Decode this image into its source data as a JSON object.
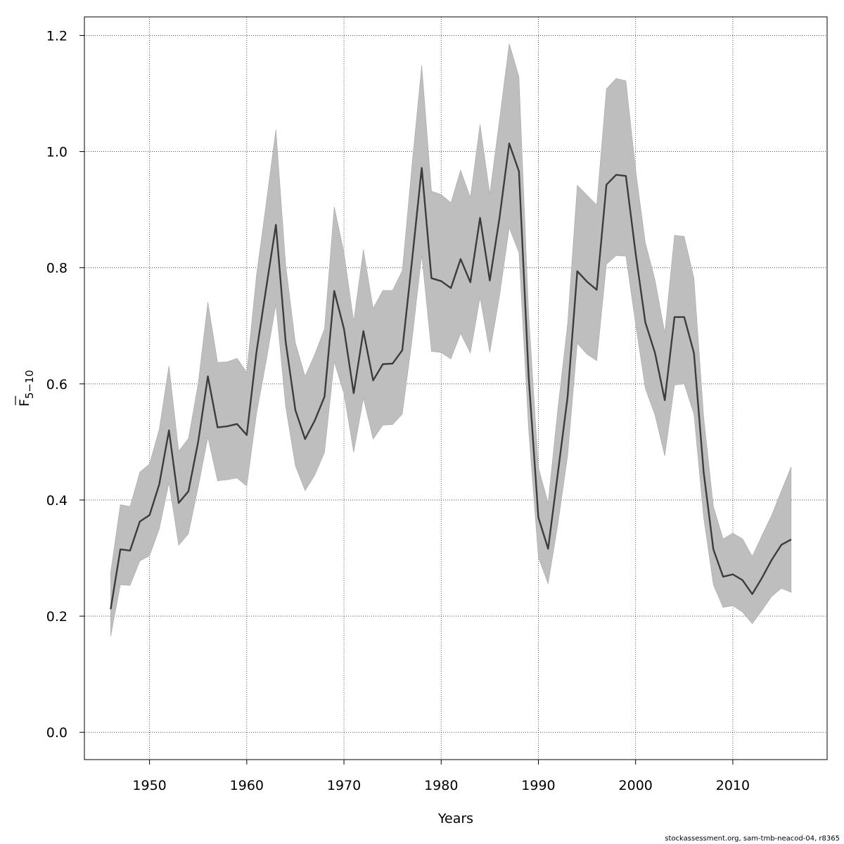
{
  "chart_data": {
    "type": "line",
    "xlabel": "Years",
    "ylabel": {
      "base": "F",
      "subscript": "5−10"
    },
    "xlim": [
      1943.3,
      2019.7
    ],
    "ylim": [
      -0.047,
      1.232
    ],
    "x_ticks": [
      1950,
      1960,
      1970,
      1980,
      1990,
      2000,
      2010
    ],
    "x_tick_labels": [
      "1950",
      "1960",
      "1970",
      "1980",
      "1990",
      "2000",
      "2010"
    ],
    "y_ticks": [
      0.0,
      0.2,
      0.4,
      0.6,
      0.8,
      1.0,
      1.2
    ],
    "y_tick_labels": [
      "0.0",
      "0.2",
      "0.4",
      "0.6",
      "0.8",
      "1.0",
      "1.2"
    ],
    "grid": true,
    "colors": {
      "line": "#3c3c3c",
      "band": "#bebebe",
      "band_edge": "#a8a8a8"
    },
    "series": [
      {
        "years": [
          1946,
          1947,
          1948,
          1949,
          1950,
          1951,
          1952,
          1953,
          1954,
          1955,
          1956,
          1957,
          1958,
          1959,
          1960,
          1961,
          1962,
          1963,
          1964,
          1965,
          1966,
          1967,
          1968,
          1969,
          1970,
          1971,
          1972,
          1973,
          1974,
          1975,
          1976,
          1977,
          1978,
          1979,
          1980,
          1981,
          1982,
          1983,
          1984,
          1985,
          1986,
          1987,
          1988,
          1989,
          1990,
          1991,
          1992,
          1993,
          1994,
          1995,
          1996,
          1997,
          1998,
          1999,
          2000,
          2001,
          2002,
          2003,
          2004,
          2005,
          2006,
          2007,
          2008,
          2009,
          2010,
          2011,
          2012,
          2013,
          2014,
          2015,
          2016
        ],
        "values": [
          0.212,
          0.315,
          0.313,
          0.363,
          0.374,
          0.427,
          0.52,
          0.395,
          0.415,
          0.5,
          0.613,
          0.525,
          0.527,
          0.531,
          0.512,
          0.655,
          0.765,
          0.874,
          0.673,
          0.555,
          0.505,
          0.537,
          0.578,
          0.76,
          0.695,
          0.584,
          0.691,
          0.606,
          0.634,
          0.635,
          0.658,
          0.812,
          0.972,
          0.782,
          0.777,
          0.765,
          0.815,
          0.775,
          0.886,
          0.778,
          0.886,
          1.014,
          0.966,
          0.612,
          0.37,
          0.316,
          0.446,
          0.577,
          0.794,
          0.776,
          0.762,
          0.943,
          0.96,
          0.958,
          0.825,
          0.706,
          0.653,
          0.572,
          0.715,
          0.715,
          0.653,
          0.448,
          0.315,
          0.268,
          0.272,
          0.262,
          0.238,
          0.266,
          0.297,
          0.323,
          0.332
        ],
        "lower": [
          0.165,
          0.254,
          0.253,
          0.295,
          0.304,
          0.35,
          0.43,
          0.322,
          0.342,
          0.422,
          0.508,
          0.433,
          0.435,
          0.438,
          0.424,
          0.548,
          0.639,
          0.737,
          0.561,
          0.459,
          0.416,
          0.443,
          0.482,
          0.638,
          0.583,
          0.482,
          0.575,
          0.505,
          0.529,
          0.53,
          0.548,
          0.675,
          0.822,
          0.656,
          0.654,
          0.643,
          0.687,
          0.653,
          0.749,
          0.654,
          0.751,
          0.869,
          0.826,
          0.52,
          0.301,
          0.256,
          0.358,
          0.475,
          0.67,
          0.651,
          0.64,
          0.806,
          0.821,
          0.82,
          0.703,
          0.592,
          0.546,
          0.476,
          0.598,
          0.6,
          0.548,
          0.37,
          0.254,
          0.215,
          0.218,
          0.207,
          0.187,
          0.21,
          0.234,
          0.248,
          0.241
        ],
        "upper": [
          0.275,
          0.392,
          0.389,
          0.448,
          0.462,
          0.522,
          0.631,
          0.484,
          0.506,
          0.6,
          0.741,
          0.637,
          0.638,
          0.644,
          0.62,
          0.787,
          0.911,
          1.038,
          0.806,
          0.671,
          0.613,
          0.651,
          0.695,
          0.905,
          0.826,
          0.708,
          0.831,
          0.73,
          0.761,
          0.761,
          0.795,
          0.977,
          1.149,
          0.932,
          0.926,
          0.912,
          0.968,
          0.921,
          1.047,
          0.927,
          1.055,
          1.186,
          1.129,
          0.72,
          0.456,
          0.395,
          0.557,
          0.702,
          0.942,
          0.925,
          0.908,
          1.108,
          1.126,
          1.122,
          0.969,
          0.843,
          0.779,
          0.688,
          0.856,
          0.854,
          0.782,
          0.543,
          0.389,
          0.333,
          0.343,
          0.333,
          0.303,
          0.339,
          0.374,
          0.416,
          0.457
        ]
      }
    ]
  },
  "footer": {
    "credit": "stockassessment.org, sam-tmb-neacod-04, r8365"
  }
}
